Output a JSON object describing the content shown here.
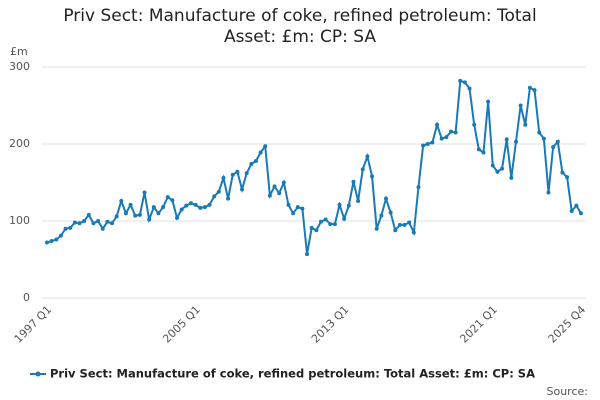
{
  "chart_data": {
    "type": "line",
    "title": "Priv Sect: Manufacture of coke, refined petroleum: Total Asset: £m: CP: SA",
    "y_unit": "£m",
    "source": "Source:",
    "categories": [
      "1997 Q1",
      null,
      null,
      null,
      null,
      null,
      null,
      null,
      null,
      null,
      null,
      null,
      null,
      null,
      null,
      null,
      null,
      null,
      null,
      null,
      null,
      null,
      null,
      null,
      null,
      null,
      null,
      null,
      null,
      null,
      null,
      null,
      "2005 Q1",
      null,
      null,
      null,
      null,
      null,
      null,
      null,
      null,
      null,
      null,
      null,
      null,
      null,
      null,
      null,
      null,
      null,
      null,
      null,
      null,
      null,
      null,
      null,
      null,
      null,
      null,
      null,
      null,
      null,
      null,
      null,
      "2013 Q1",
      null,
      null,
      null,
      null,
      null,
      null,
      null,
      null,
      null,
      null,
      null,
      null,
      null,
      null,
      null,
      null,
      null,
      null,
      null,
      null,
      null,
      null,
      null,
      null,
      null,
      null,
      null,
      null,
      null,
      null,
      null,
      "2021 Q1",
      null,
      null,
      null,
      null,
      null,
      null,
      null,
      null,
      null,
      null,
      null,
      null,
      null,
      null,
      null,
      null,
      null,
      null,
      "2025 Q4"
    ],
    "series": [
      {
        "name": "Priv Sect: Manufacture of coke, refined petroleum: Total Asset: £m: CP: SA",
        "color": "#1a7ab5",
        "values": [
          72,
          74,
          76,
          81,
          90,
          91,
          98,
          97,
          100,
          108,
          97,
          100,
          90,
          99,
          97,
          106,
          126,
          110,
          121,
          107,
          108,
          137,
          102,
          118,
          110,
          118,
          131,
          127,
          104,
          115,
          120,
          123,
          121,
          117,
          118,
          121,
          132,
          138,
          156,
          129,
          160,
          164,
          141,
          162,
          174,
          178,
          189,
          197,
          133,
          145,
          136,
          150,
          121,
          110,
          118,
          116,
          57,
          91,
          88,
          99,
          102,
          96,
          96,
          121,
          103,
          120,
          151,
          126,
          167,
          184,
          158,
          90,
          107,
          129,
          111,
          88,
          95,
          95,
          98,
          85,
          144,
          198,
          200,
          202,
          225,
          207,
          209,
          216,
          215,
          282,
          280,
          272,
          225,
          193,
          189,
          255,
          172,
          164,
          168,
          206,
          156,
          203,
          250,
          225,
          273,
          270,
          215,
          207,
          137,
          196,
          203,
          163,
          157,
          113,
          120,
          110
        ]
      }
    ],
    "ylim": [
      0,
      300
    ],
    "yticks": [
      0,
      100,
      200,
      300
    ],
    "grid": true,
    "legend": "bottom"
  }
}
